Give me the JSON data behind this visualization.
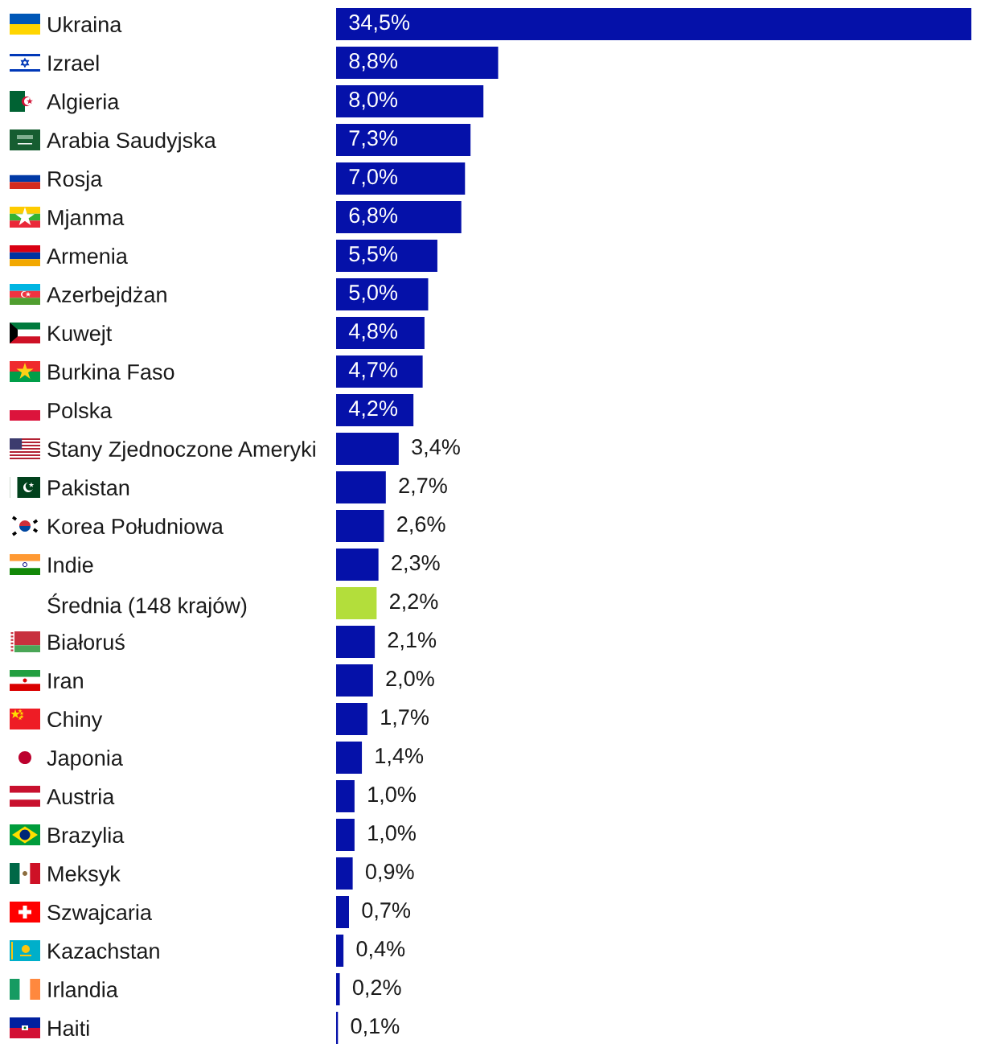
{
  "chart_data": {
    "type": "bar",
    "orientation": "horizontal",
    "tick_labels": "y",
    "categories": [
      "Ukraina",
      "Izrael",
      "Algieria",
      "Arabia Saudyjska",
      "Rosja",
      "Mjanma",
      "Armenia",
      "Azerbejdżan",
      "Kuwejt",
      "Burkina Faso",
      "Polska",
      "Stany Zjednoczone Ameryki",
      "Pakistan",
      "Korea Południowa",
      "Indie",
      "Średnia (148 krajów)",
      "Białoruś",
      "Iran",
      "Chiny",
      "Japonia",
      "Austria",
      "Brazylia",
      "Meksyk",
      "Szwajcaria",
      "Kazachstan",
      "Irlandia",
      "Haiti"
    ],
    "values": [
      34.5,
      8.8,
      8.0,
      7.3,
      7.0,
      6.8,
      5.5,
      5.0,
      4.8,
      4.7,
      4.2,
      3.4,
      2.7,
      2.6,
      2.3,
      2.2,
      2.1,
      2.0,
      1.7,
      1.4,
      1.0,
      1.0,
      0.9,
      0.7,
      0.4,
      0.2,
      0.1
    ],
    "value_labels": [
      "34,5%",
      "8,8%",
      "8,0%",
      "7,3%",
      "7,0%",
      "6,8%",
      "5,5%",
      "5,0%",
      "4,8%",
      "4,7%",
      "4,2%",
      "3,4%",
      "2,7%",
      "2,6%",
      "2,3%",
      "2,2%",
      "2,1%",
      "2,0%",
      "1,7%",
      "1,4%",
      "1,0%",
      "1,0%",
      "0,9%",
      "0,7%",
      "0,4%",
      "0,2%",
      "0,1%"
    ],
    "colors": [
      "#0511a9",
      "#0511a9",
      "#0511a9",
      "#0511a9",
      "#0511a9",
      "#0511a9",
      "#0511a9",
      "#0511a9",
      "#0511a9",
      "#0511a9",
      "#0511a9",
      "#0511a9",
      "#0511a9",
      "#0511a9",
      "#0511a9",
      "#b3de3b",
      "#0511a9",
      "#0511a9",
      "#0511a9",
      "#0511a9",
      "#0511a9",
      "#0511a9",
      "#0511a9",
      "#0511a9",
      "#0511a9",
      "#0511a9",
      "#0511a9"
    ]
  }
}
